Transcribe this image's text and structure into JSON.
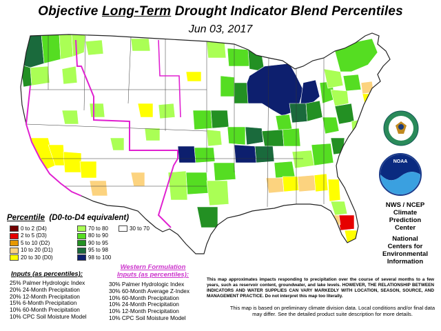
{
  "header": {
    "title_prefix": "Objective ",
    "title_underlined": "Long-Term",
    "title_suffix": " Drought Indicator Blend Percentiles",
    "date": "Jun 03, 2017"
  },
  "legend": {
    "title_prefix": "Percentile",
    "title_suffix": "(D0-to-D4 equivalent)",
    "items": [
      {
        "label": "0 to 2  (D4)",
        "color": "#730000"
      },
      {
        "label": "2 to 5  (D3)",
        "color": "#e60000"
      },
      {
        "label": "5 to 10  (D2)",
        "color": "#e69800"
      },
      {
        "label": "10 to 20  (D1)",
        "color": "#fcd37f"
      },
      {
        "label": "20 to 30  (D0)",
        "color": "#ffff00"
      },
      {
        "label": "70 to 80",
        "color": "#aaff55"
      },
      {
        "label": "80 to 90",
        "color": "#55dd22"
      },
      {
        "label": "90 to 95",
        "color": "#239023"
      },
      {
        "label": "95 to 98",
        "color": "#1a6a3c"
      },
      {
        "label": "98 to 100",
        "color": "#0d1f6e"
      },
      {
        "label": "30 to 70",
        "color": "#ffffff"
      }
    ]
  },
  "inputs": {
    "title": "Inputs (as percentiles):",
    "lines": [
      "25%  Palmer Hydrologic Index",
      "20%  24-Month Precipitation",
      "20%  12-Month Precipitation",
      "15%  6-Month Precipitation",
      "10%  60-Month Precipitation",
      "10%  CPC Soil Moisture Model"
    ]
  },
  "western": {
    "title_line1": "Western Formulation",
    "title_line2": "Inputs (as percentiles):",
    "lines": [
      "30% Palmer Hydrologic Index",
      "30% 60-Month Average Z-Index",
      "10% 60-Month Precipitation",
      "10% 24-Month Precipitation",
      "10% 12-Month Precipitation",
      "10% CPC Soil Moisture Model"
    ]
  },
  "notes": {
    "bold": "This map approximates impacts responding to precipitation over the course of several months to a few years, such as reservoir content, groundwater, and lake levels. HOWEVER, THE RELATIONSHIP BETWEEN INDICATORS AND WATER SUPPLIES CAN VARY MARKEDLY WITH LOCATION, SEASON, SOURCE, AND MANAGEMENT PRACTICE. Do not interpret this map too literally.",
    "plain": "This map is based on preliminary climate division data. Local conditions and/or final data may differ. See the detailed product suite description for more details."
  },
  "agency": {
    "lines": [
      "NWS / NCEP",
      "Climate",
      "Prediction",
      "Center",
      "",
      "National",
      "Centers for",
      "Environmental",
      "Information"
    ],
    "noaa_text": "NOAA"
  }
}
